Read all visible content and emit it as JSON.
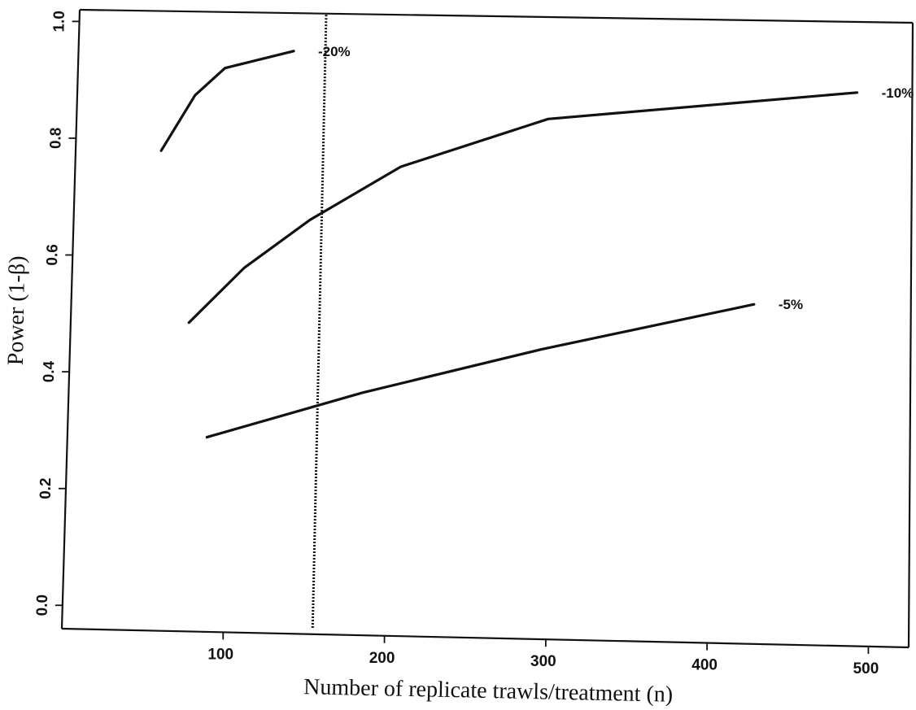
{
  "chart_data": {
    "type": "line",
    "xlabel": "Number of replicate trawls/treatment (n)",
    "ylabel": "Power  (1-β)",
    "xlim": [
      0,
      525
    ],
    "ylim": [
      -0.04,
      1.02
    ],
    "x_ticks": [
      {
        "value": 100,
        "label": "100"
      },
      {
        "value": 200,
        "label": "200"
      },
      {
        "value": 300,
        "label": "300"
      },
      {
        "value": 400,
        "label": "400"
      },
      {
        "value": 500,
        "label": "500"
      }
    ],
    "y_ticks": [
      {
        "value": 0.0,
        "label": "0.0"
      },
      {
        "value": 0.2,
        "label": "0.2"
      },
      {
        "value": 0.4,
        "label": "0.4"
      },
      {
        "value": 0.6,
        "label": "0.6"
      },
      {
        "value": 0.8,
        "label": "0.8"
      },
      {
        "value": 1.0,
        "label": "1.0"
      }
    ],
    "grid": false,
    "series": [
      {
        "name": "-20%",
        "color": "#111111",
        "x": [
          52,
          72,
          90,
          132
        ],
        "y": [
          0.8,
          0.9,
          0.95,
          0.985
        ]
      },
      {
        "name": "-10%",
        "color": "#111111",
        "x": [
          72,
          105,
          145,
          200,
          290,
          480
        ],
        "y": [
          0.5,
          0.6,
          0.69,
          0.79,
          0.885,
          0.955
        ]
      },
      {
        "name": "-5%",
        "color": "#111111",
        "x": [
          85,
          180,
          290,
          420
        ],
        "y": [
          0.3,
          0.39,
          0.48,
          0.575
        ]
      }
    ],
    "reference_lines": [
      {
        "type": "vertical",
        "style": "dotted",
        "x": 155
      }
    ]
  }
}
